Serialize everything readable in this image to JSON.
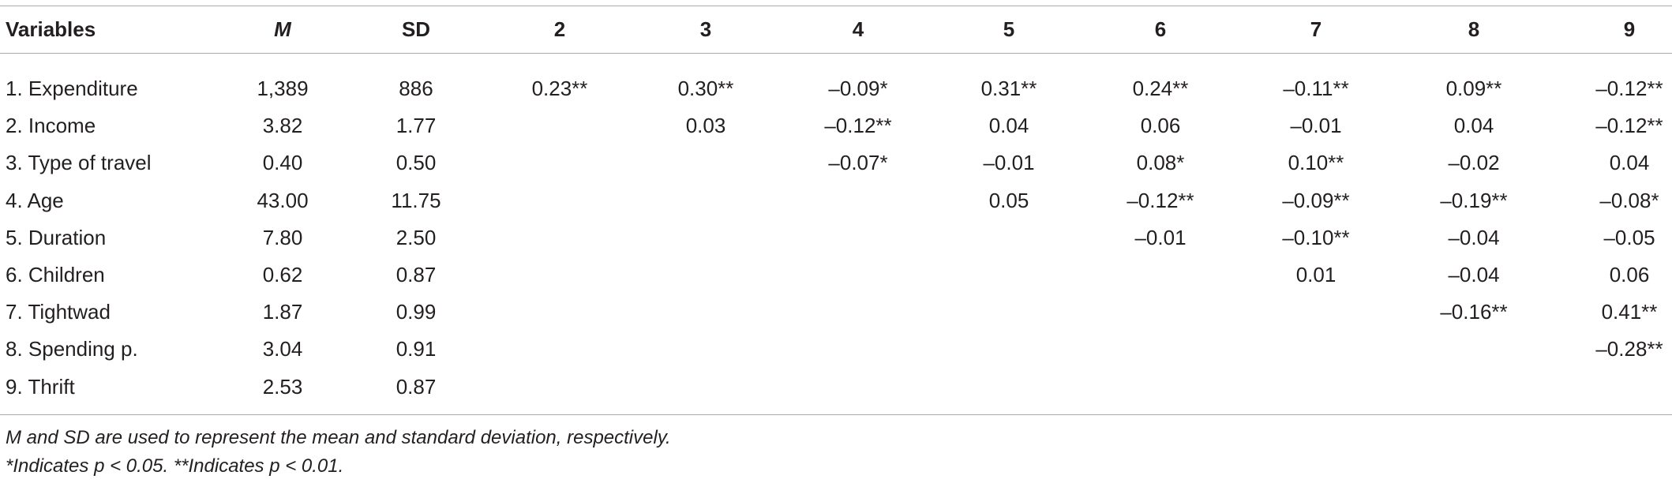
{
  "table": {
    "header": [
      "Variables",
      "M",
      "SD",
      "2",
      "3",
      "4",
      "5",
      "6",
      "7",
      "8",
      "9"
    ],
    "rows": [
      {
        "label": "1. Expenditure",
        "m": "1,389",
        "sd": "886",
        "r": [
          "0.23**",
          "0.30**",
          "–0.09*",
          "0.31**",
          "0.24**",
          "–0.11**",
          "0.09**",
          "–0.12**"
        ]
      },
      {
        "label": "2. Income",
        "m": "3.82",
        "sd": "1.77",
        "r": [
          "0.03",
          "–0.12**",
          "0.04",
          "0.06",
          "–0.01",
          "0.04",
          "–0.12**"
        ]
      },
      {
        "label": "3. Type of travel",
        "m": "0.40",
        "sd": "0.50",
        "r": [
          "–0.07*",
          "–0.01",
          "0.08*",
          "0.10**",
          "–0.02",
          "0.04"
        ]
      },
      {
        "label": "4. Age",
        "m": "43.00",
        "sd": "11.75",
        "r": [
          "0.05",
          "–0.12**",
          "–0.09**",
          "–0.19**",
          "–0.08*"
        ]
      },
      {
        "label": "5. Duration",
        "m": "7.80",
        "sd": "2.50",
        "r": [
          "–0.01",
          "–0.10**",
          "–0.04",
          "–0.05"
        ]
      },
      {
        "label": "6. Children",
        "m": "0.62",
        "sd": "0.87",
        "r": [
          "0.01",
          "–0.04",
          "0.06"
        ]
      },
      {
        "label": "7. Tightwad",
        "m": "1.87",
        "sd": "0.99",
        "r": [
          "–0.16**",
          "0.41**"
        ]
      },
      {
        "label": "8. Spending p.",
        "m": "3.04",
        "sd": "0.91",
        "r": [
          "–0.28**"
        ]
      },
      {
        "label": "9. Thrift",
        "m": "2.53",
        "sd": "0.87",
        "r": []
      }
    ]
  },
  "notes": [
    "M and SD are used to represent the mean and standard deviation, respectively.",
    "*Indicates p < 0.05. **Indicates p < 0.01."
  ]
}
